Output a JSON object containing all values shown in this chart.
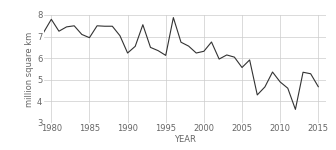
{
  "years": [
    1979,
    1980,
    1981,
    1982,
    1983,
    1984,
    1985,
    1986,
    1987,
    1988,
    1989,
    1990,
    1991,
    1992,
    1993,
    1994,
    1995,
    1996,
    1997,
    1998,
    1999,
    2000,
    2001,
    2002,
    2003,
    2004,
    2005,
    2006,
    2007,
    2008,
    2009,
    2010,
    2011,
    2012,
    2013,
    2014,
    2015
  ],
  "values": [
    7.2,
    7.8,
    7.25,
    7.45,
    7.5,
    7.1,
    6.95,
    7.5,
    7.48,
    7.48,
    7.04,
    6.24,
    6.55,
    7.55,
    6.5,
    6.35,
    6.13,
    7.88,
    6.74,
    6.56,
    6.24,
    6.32,
    6.75,
    5.96,
    6.15,
    6.05,
    5.57,
    5.92,
    4.3,
    4.67,
    5.36,
    4.9,
    4.61,
    3.63,
    5.35,
    5.28,
    4.68
  ],
  "xlim": [
    1979,
    2016
  ],
  "ylim": [
    3,
    8
  ],
  "xticks": [
    1980,
    1985,
    1990,
    1995,
    2000,
    2005,
    2010,
    2015
  ],
  "yticks": [
    3,
    4,
    5,
    6,
    7,
    8
  ],
  "xlabel": "YEAR",
  "ylabel": "million square km",
  "line_color": "#333333",
  "line_width": 0.8,
  "grid_color": "#cccccc",
  "bg_color": "#ffffff",
  "label_fontsize": 6,
  "tick_fontsize": 6
}
